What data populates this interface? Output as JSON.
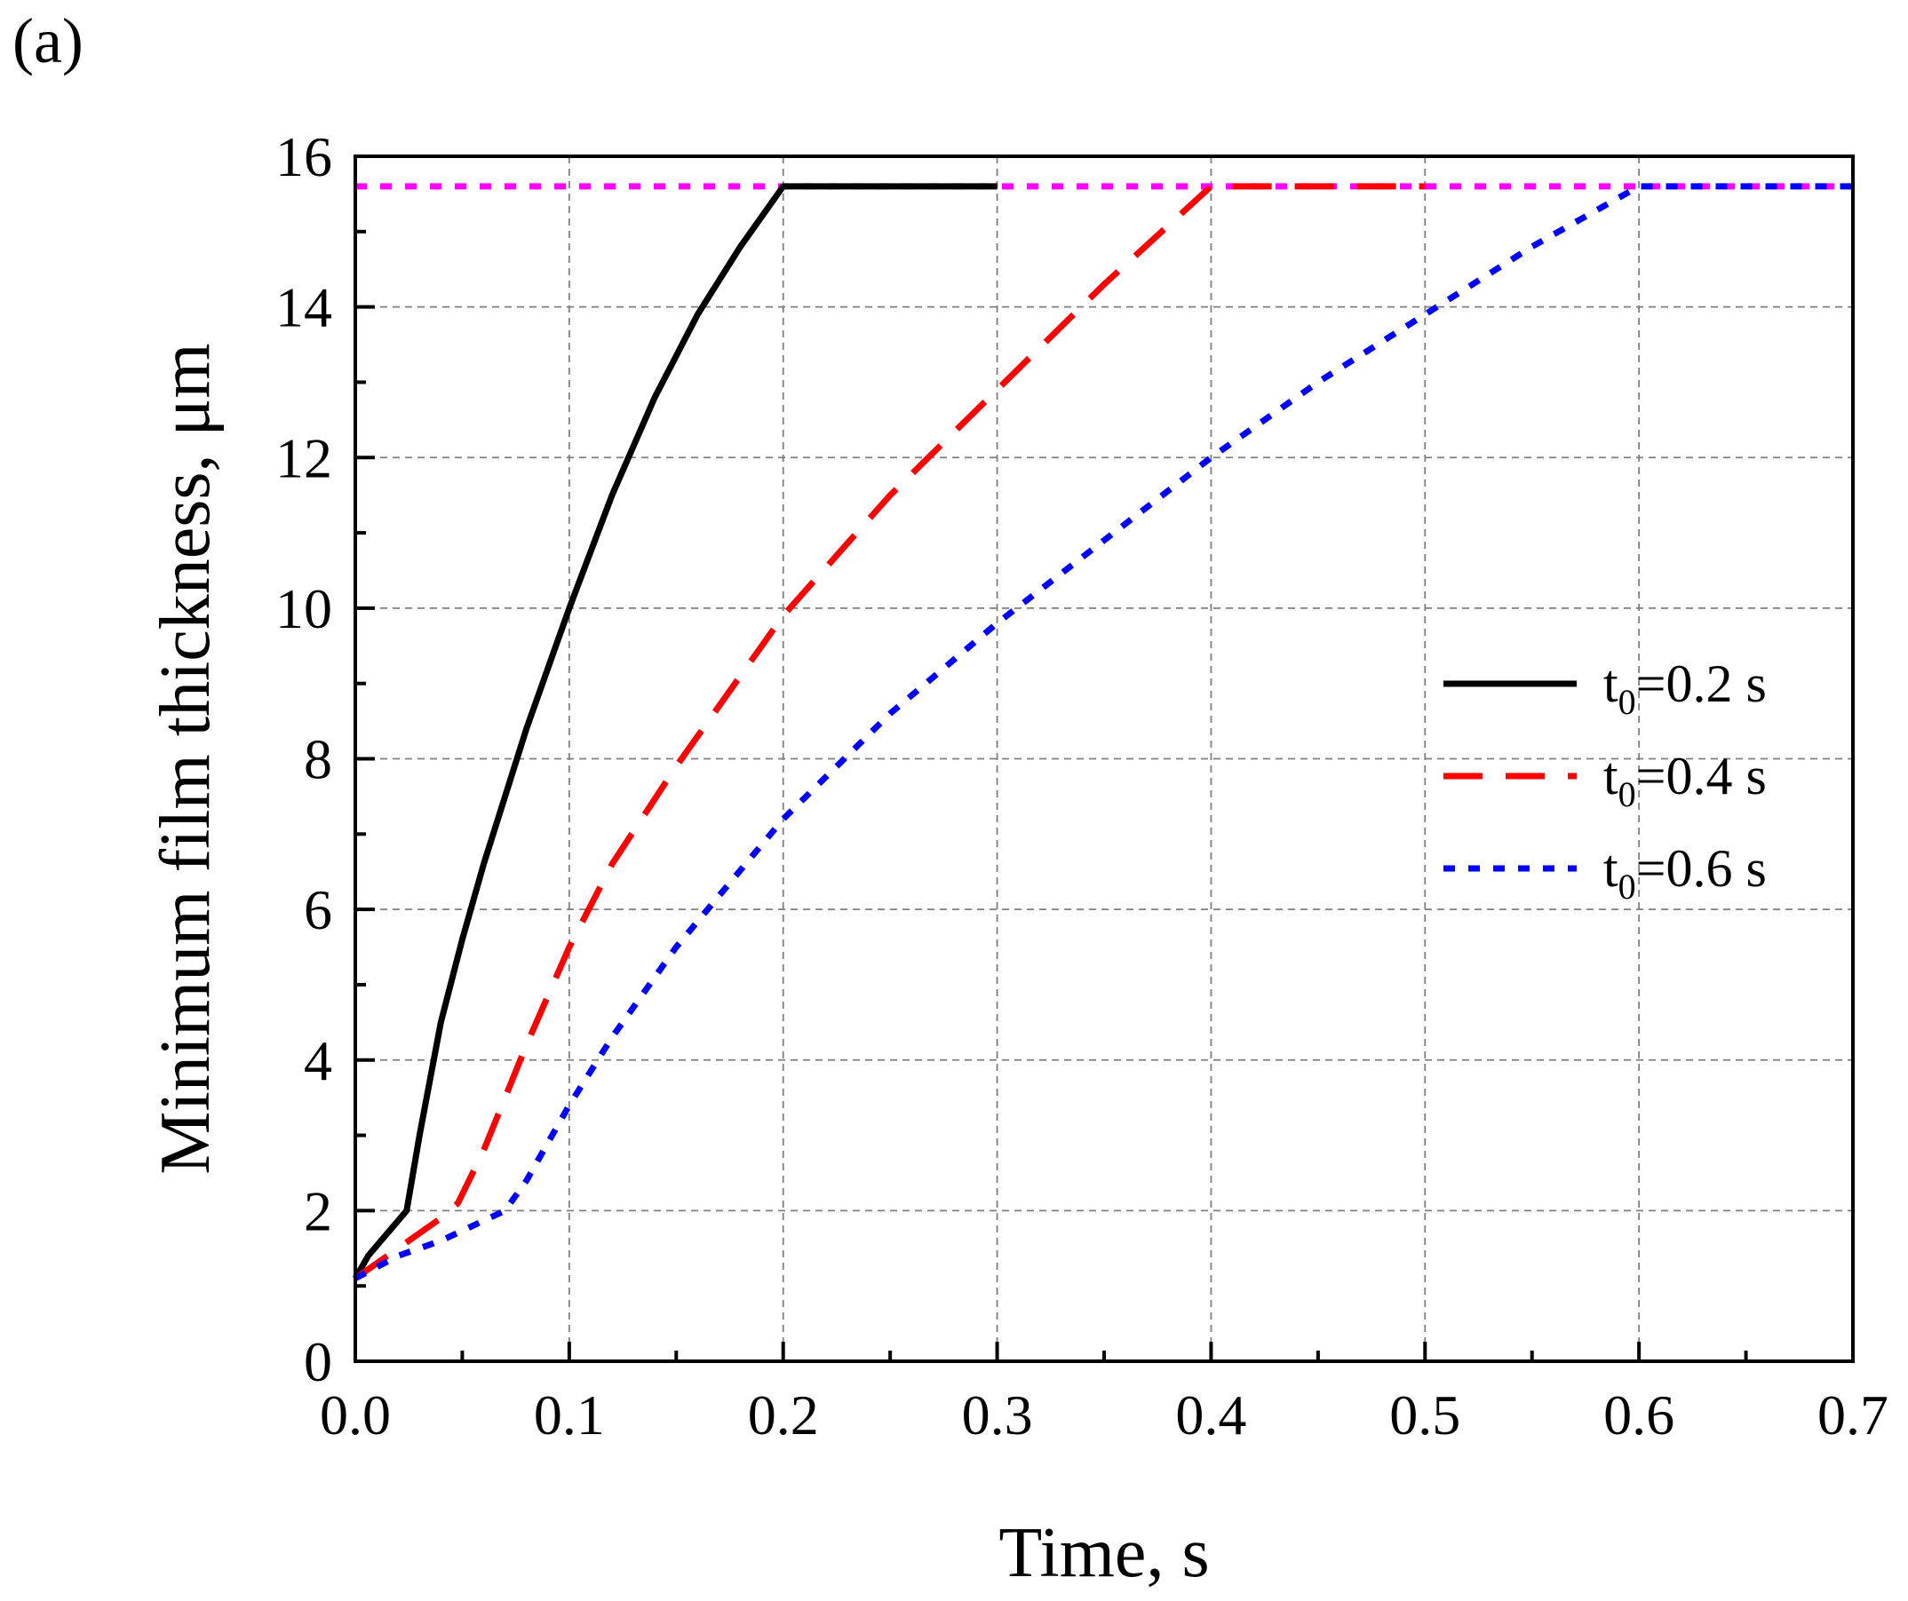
{
  "panel_label": "(a)",
  "chart_data": {
    "type": "line",
    "title": "",
    "xlabel": "Time, s",
    "ylabel": "Minimum film thickness, μm",
    "xlim": [
      0.0,
      0.7
    ],
    "ylim": [
      0,
      16
    ],
    "xticks": [
      "0.0",
      "0.1",
      "0.2",
      "0.3",
      "0.4",
      "0.5",
      "0.6",
      "0.7"
    ],
    "yticks": [
      "0",
      "2",
      "4",
      "6",
      "8",
      "10",
      "12",
      "14",
      "16"
    ],
    "grid": true,
    "legend_position": "right",
    "reference_line": {
      "y": 15.6,
      "color": "#ff00ff",
      "style": "dotted"
    },
    "series": [
      {
        "name": "t0=0.2 s",
        "legend_main": "t",
        "legend_sub": "0",
        "legend_rest": "=0.2 s",
        "color": "#000000",
        "style": "solid",
        "x": [
          0.0,
          0.006,
          0.012,
          0.018,
          0.024,
          0.03,
          0.04,
          0.05,
          0.06,
          0.07,
          0.08,
          0.09,
          0.1,
          0.12,
          0.14,
          0.16,
          0.18,
          0.2,
          0.25,
          0.3
        ],
        "y": [
          1.1,
          1.4,
          1.6,
          1.8,
          2.0,
          3.0,
          4.5,
          5.6,
          6.6,
          7.5,
          8.4,
          9.2,
          10.0,
          11.5,
          12.8,
          13.9,
          14.8,
          15.6,
          15.6,
          15.6
        ]
      },
      {
        "name": "t0=0.4 s",
        "legend_main": "t",
        "legend_sub": "0",
        "legend_rest": "=0.4 s",
        "color": "#ff0000",
        "style": "dashed",
        "x": [
          0.0,
          0.02,
          0.04,
          0.048,
          0.06,
          0.08,
          0.1,
          0.12,
          0.15,
          0.2,
          0.25,
          0.3,
          0.35,
          0.4,
          0.45,
          0.5
        ],
        "y": [
          1.1,
          1.5,
          1.9,
          2.1,
          2.8,
          4.2,
          5.5,
          6.6,
          7.9,
          9.9,
          11.5,
          12.9,
          14.3,
          15.6,
          15.6,
          15.6
        ]
      },
      {
        "name": "t0=0.6 s",
        "legend_main": "t",
        "legend_sub": "0",
        "legend_rest": "=0.6 s",
        "color": "#0000ff",
        "style": "dotted",
        "x": [
          0.0,
          0.02,
          0.04,
          0.07,
          0.08,
          0.1,
          0.12,
          0.15,
          0.2,
          0.25,
          0.3,
          0.35,
          0.4,
          0.45,
          0.5,
          0.55,
          0.6,
          0.65,
          0.7
        ],
        "y": [
          1.1,
          1.4,
          1.6,
          2.0,
          2.4,
          3.4,
          4.3,
          5.5,
          7.2,
          8.6,
          9.8,
          10.9,
          12.0,
          13.0,
          13.9,
          14.8,
          15.6,
          15.6,
          15.6
        ]
      }
    ]
  }
}
